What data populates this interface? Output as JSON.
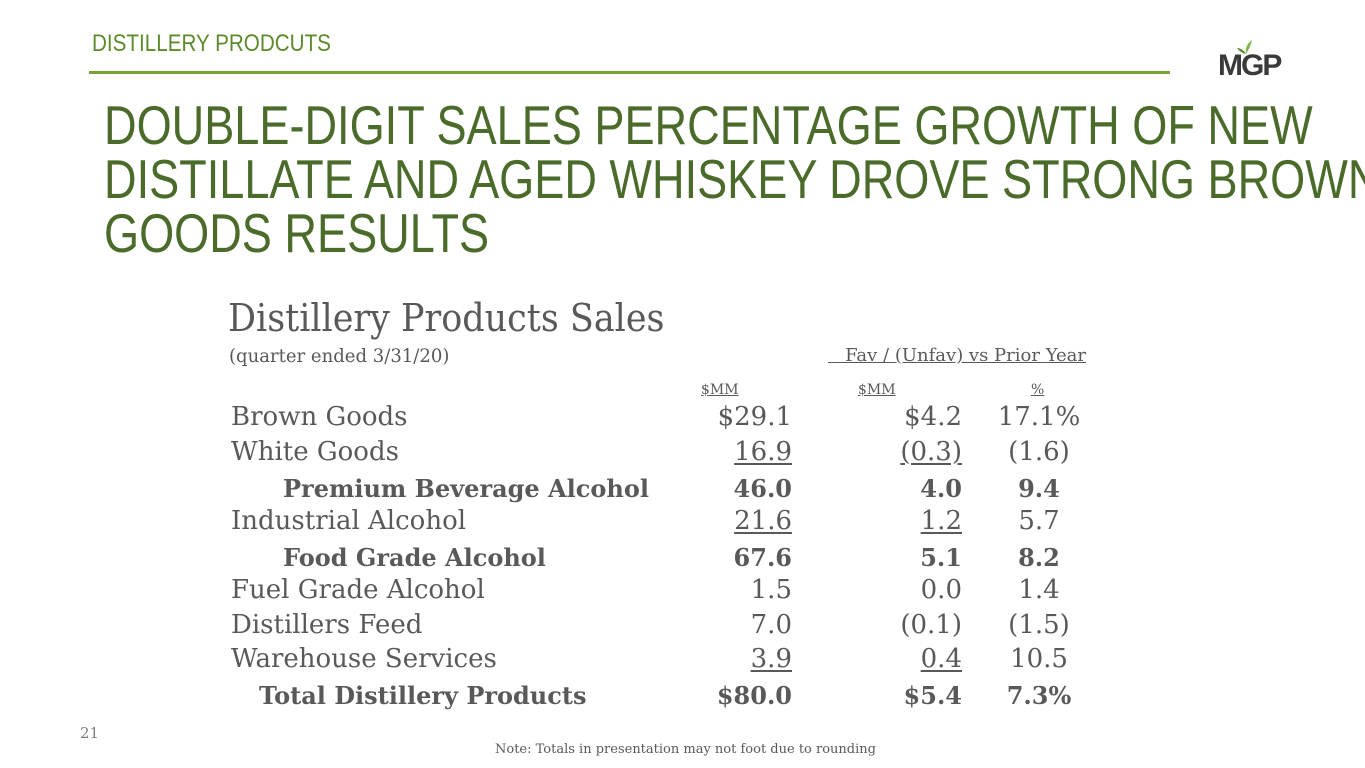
{
  "header": {
    "section_label": "DISTILLERY PRODCUTS",
    "logo_text": "MGP",
    "accent_color": "#77a33a",
    "headline_lines": [
      "DOUBLE-DIGIT SALES PERCENTAGE GROWTH OF NEW",
      "DISTILLATE AND AGED WHISKEY DROVE STRONG BROWN",
      "GOODS RESULTS"
    ]
  },
  "table": {
    "title": "Distillery Products Sales",
    "subtitle": "(quarter ended 3/31/20)",
    "fav_header": "   Fav / (Unfav) vs Prior Year",
    "col_heads": [
      "$MM",
      "$MM",
      "%"
    ],
    "rows": [
      {
        "label": "Brown Goods",
        "v1": "$29.1",
        "v2": "$4.2",
        "v3": "17.1%"
      },
      {
        "label": "White Goods",
        "v1": "16.9",
        "v2": "(0.3)",
        "v3": "(1.6)"
      },
      {
        "label": "Premium Beverage Alcohol",
        "v1": "46.0",
        "v2": "4.0",
        "v3": "9.4"
      },
      {
        "label": "Industrial Alcohol",
        "v1": "21.6",
        "v2": "1.2",
        "v3": "5.7"
      },
      {
        "label": "Food Grade Alcohol",
        "v1": "67.6",
        "v2": "5.1",
        "v3": "8.2"
      },
      {
        "label": "Fuel Grade Alcohol",
        "v1": "1.5",
        "v2": "0.0",
        "v3": "1.4"
      },
      {
        "label": "Distillers Feed",
        "v1": "7.0",
        "v2": "(0.1)",
        "v3": "(1.5)"
      },
      {
        "label": "Warehouse Services",
        "v1": "3.9",
        "v2": "0.4",
        "v3": "10.5"
      },
      {
        "label": "Total Distillery Products",
        "v1": "$80.0",
        "v2": "$5.4",
        "v3": "7.3%"
      }
    ]
  },
  "footer": {
    "page_number": "21",
    "note": "Note: Totals in presentation may not foot due to rounding"
  }
}
